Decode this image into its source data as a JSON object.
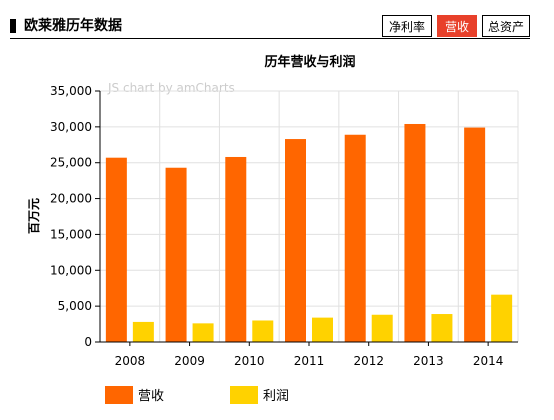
{
  "header": {
    "title": "欧莱雅历年数据",
    "tabs": [
      {
        "label": "净利率",
        "active": false
      },
      {
        "label": "营收",
        "active": true
      },
      {
        "label": "总资产",
        "active": false
      }
    ]
  },
  "watermark": "JS chart by amCharts",
  "colors": {
    "revenue": "#ff6600",
    "profit": "#ffd200",
    "active_tab": "#e8402a",
    "axis": "#000000",
    "grid": "#e0e0e0"
  },
  "chart_data": {
    "type": "bar",
    "title": "历年营收与利润",
    "xlabel": "",
    "ylabel": "百万元",
    "ylim": [
      0,
      35000
    ],
    "yticks": [
      "0",
      "5,000",
      "10,000",
      "15,000",
      "20,000",
      "25,000",
      "30,000",
      "35,000"
    ],
    "categories": [
      "2008",
      "2009",
      "2010",
      "2011",
      "2012",
      "2013",
      "2014"
    ],
    "series": [
      {
        "name": "营收",
        "values": [
          25700,
          24300,
          25800,
          28300,
          28900,
          30400,
          29900
        ]
      },
      {
        "name": "利润",
        "values": [
          2800,
          2600,
          3000,
          3400,
          3800,
          3900,
          6600
        ]
      }
    ],
    "grid": true,
    "legend": "bottom-left"
  }
}
